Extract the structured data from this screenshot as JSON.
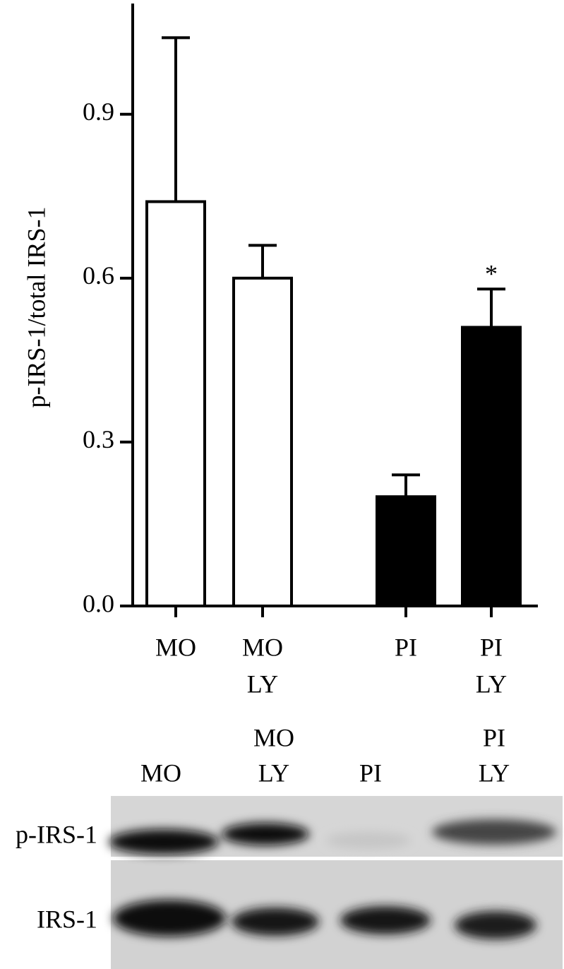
{
  "chart_data": {
    "type": "bar",
    "y_label": "p-IRS-1/total IRS-1",
    "categories": [
      [
        "MO"
      ],
      [
        "MO",
        "LY"
      ],
      [
        "PI"
      ],
      [
        "PI",
        "LY"
      ]
    ],
    "values": [
      0.74,
      0.6,
      0.2,
      0.51
    ],
    "errors": [
      0.3,
      0.06,
      0.04,
      0.07
    ],
    "colors": [
      "#ffffff",
      "#ffffff",
      "#000000",
      "#000000"
    ],
    "annotations": [
      {
        "text": "*",
        "category": 3
      }
    ],
    "ylim": [
      0,
      1.1
    ],
    "yticks": [
      {
        "value": 0,
        "label": "0.0"
      },
      0.3,
      0.6,
      0.9
    ]
  },
  "blot": {
    "lanes": [
      [
        "MO"
      ],
      [
        "MO",
        "LY"
      ],
      [
        "PI"
      ],
      [
        "PI",
        "LY"
      ]
    ],
    "rows": [
      "p-IRS-1",
      "IRS-1"
    ]
  }
}
